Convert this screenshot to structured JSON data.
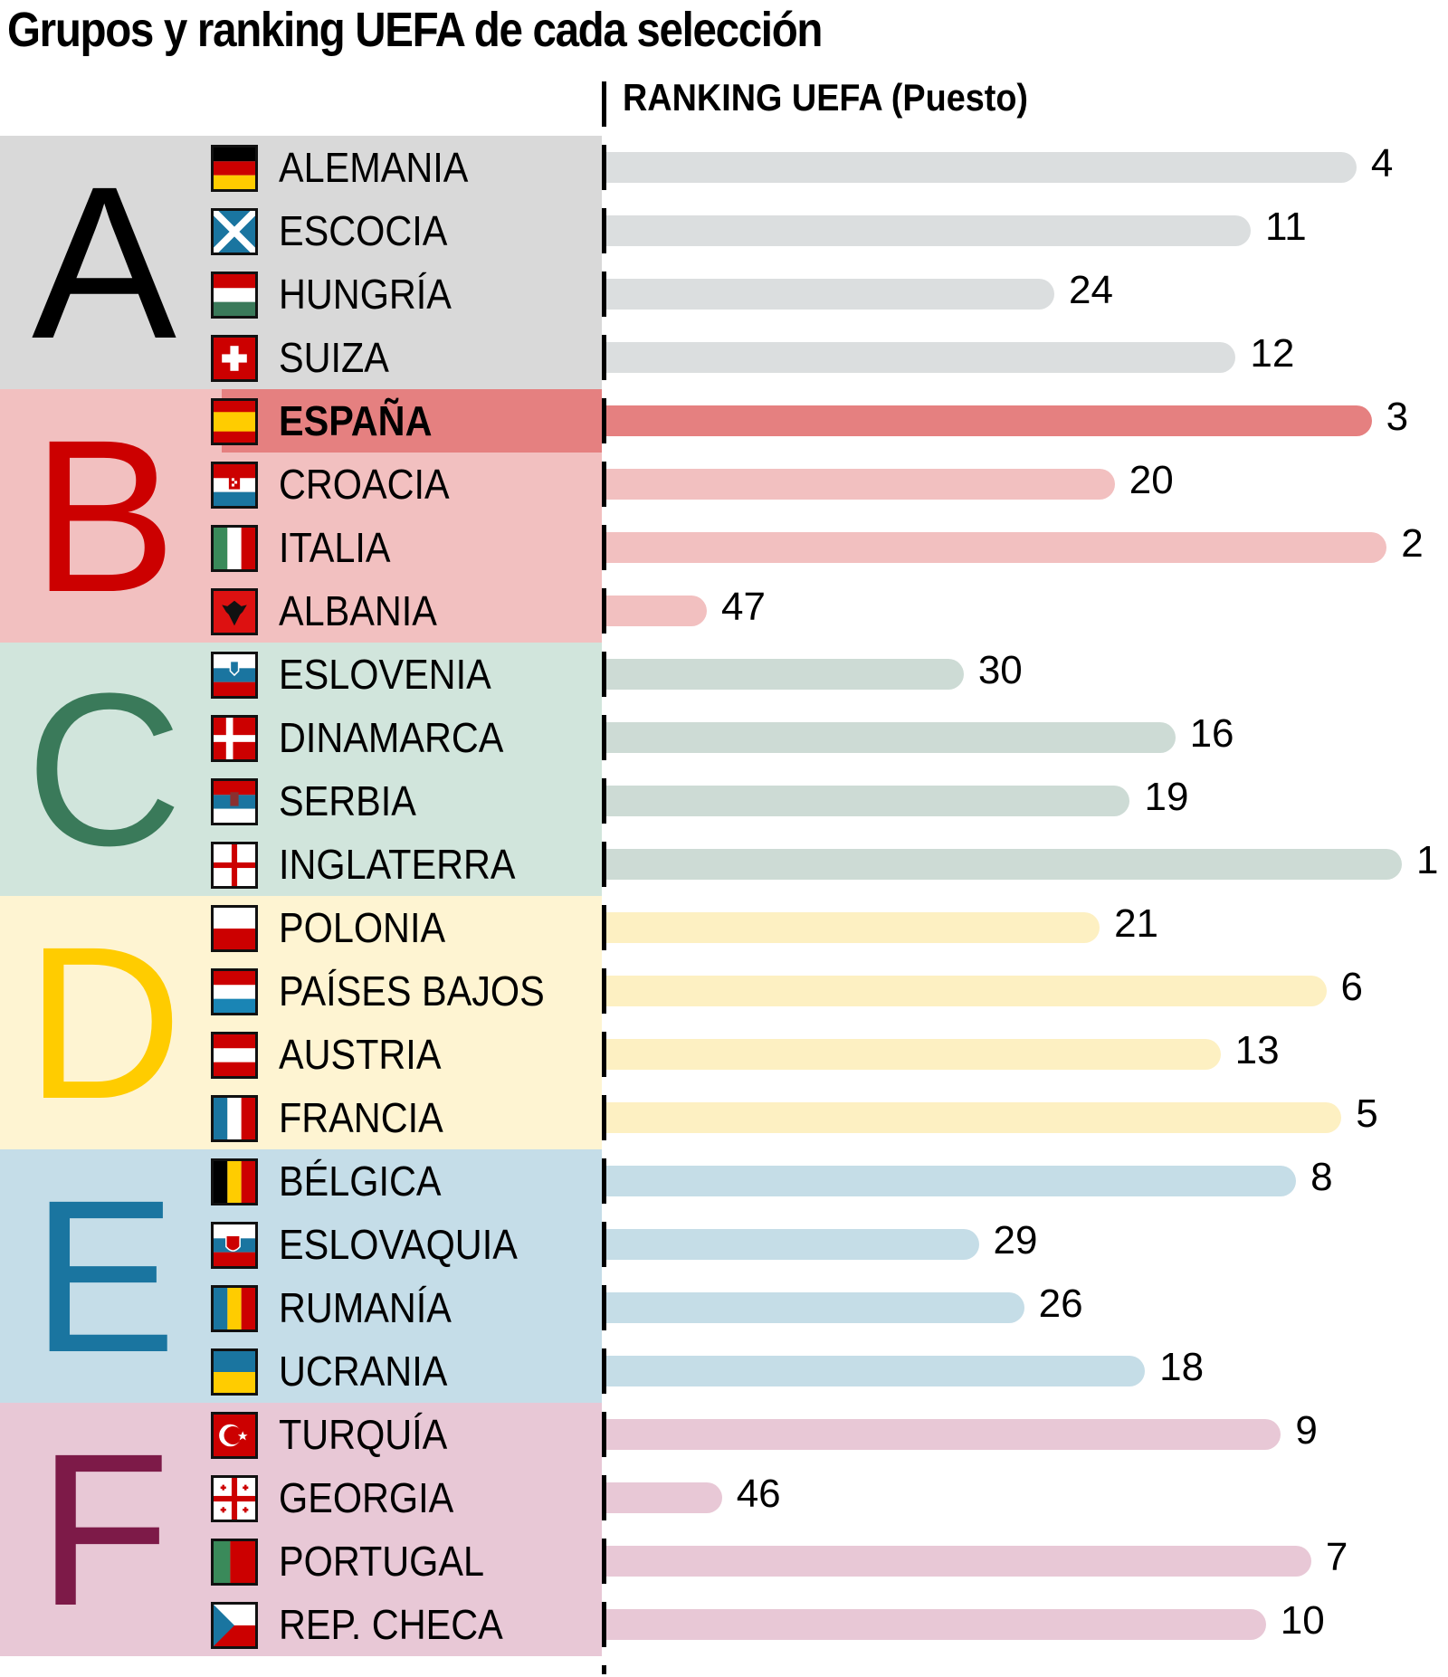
{
  "title": "Grupos y ranking UEFA de cada selección",
  "axis_title": "RANKING UEFA (Puesto)",
  "groups": [
    {
      "letter": "A",
      "letter_color": "#000000",
      "bg": "#d9d9d9",
      "bar_color": "#dbdedf",
      "teams": [
        {
          "name": "ALEMANIA",
          "rank": "4",
          "flag": "germany-flag"
        },
        {
          "name": "ESCOCIA",
          "rank": "11",
          "flag": "scotland-flag"
        },
        {
          "name": "HUNGRÍA",
          "rank": "24",
          "flag": "hungary-flag"
        },
        {
          "name": "SUIZA",
          "rank": "12",
          "flag": "switzerland-flag"
        }
      ]
    },
    {
      "letter": "B",
      "letter_color": "#cc0000",
      "bg": "#f2c0c0",
      "bar_color": "#f2c0c0",
      "teams": [
        {
          "name": "ESPAÑA",
          "rank": "3",
          "flag": "spain-flag",
          "highlight": true,
          "bar_color": "#e58080"
        },
        {
          "name": "CROACIA",
          "rank": "20",
          "flag": "croatia-flag"
        },
        {
          "name": "ITALIA",
          "rank": "2",
          "flag": "italy-flag"
        },
        {
          "name": "ALBANIA",
          "rank": "47",
          "flag": "albania-flag"
        }
      ]
    },
    {
      "letter": "C",
      "letter_color": "#3a7a5a",
      "bg": "#d1e5dc",
      "bar_color": "#cddbd5",
      "teams": [
        {
          "name": "ESLOVENIA",
          "rank": "30",
          "flag": "slovenia-flag"
        },
        {
          "name": "DINAMARCA",
          "rank": "16",
          "flag": "denmark-flag"
        },
        {
          "name": "SERBIA",
          "rank": "19",
          "flag": "serbia-flag"
        },
        {
          "name": "INGLATERRA",
          "rank": "1",
          "flag": "england-flag"
        }
      ]
    },
    {
      "letter": "D",
      "letter_color": "#ffcc00",
      "bg": "#fef4d2",
      "bar_color": "#fdf0c2",
      "teams": [
        {
          "name": "POLONIA",
          "rank": "21",
          "flag": "poland-flag"
        },
        {
          "name": "PAÍSES BAJOS",
          "rank": "6",
          "flag": "netherlands-flag"
        },
        {
          "name": "AUSTRIA",
          "rank": "13",
          "flag": "austria-flag"
        },
        {
          "name": "FRANCIA",
          "rank": "5",
          "flag": "france-flag"
        }
      ]
    },
    {
      "letter": "E",
      "letter_color": "#1a75a0",
      "bg": "#c5dde8",
      "bar_color": "#c5dde7",
      "teams": [
        {
          "name": "BÉLGICA",
          "rank": "8",
          "flag": "belgium-flag"
        },
        {
          "name": "ESLOVAQUIA",
          "rank": "29",
          "flag": "slovakia-flag"
        },
        {
          "name": "RUMANÍA",
          "rank": "26",
          "flag": "romania-flag"
        },
        {
          "name": "UCRANIA",
          "rank": "18",
          "flag": "ukraine-flag"
        }
      ]
    },
    {
      "letter": "F",
      "letter_color": "#7d1a48",
      "bg": "#e8c8d6",
      "bar_color": "#e8c8d6",
      "teams": [
        {
          "name": "TURQUÍA",
          "rank": "9",
          "flag": "turkey-flag"
        },
        {
          "name": "GEORGIA",
          "rank": "46",
          "flag": "georgia-flag"
        },
        {
          "name": "PORTUGAL",
          "rank": "7",
          "flag": "portugal-flag"
        },
        {
          "name": "REP. CHECA",
          "rank": "10",
          "flag": "czech-flag"
        }
      ]
    }
  ],
  "chart_data": {
    "type": "bar",
    "orientation": "horizontal",
    "title": "Grupos y ranking UEFA de cada selección",
    "xlabel": "RANKING UEFA (Puesto)",
    "ylabel": "",
    "note": "Bar length inversely proportional to ranking position (1 = longest)",
    "categories": [
      "ALEMANIA",
      "ESCOCIA",
      "HUNGRÍA",
      "SUIZA",
      "ESPAÑA",
      "CROACIA",
      "ITALIA",
      "ALBANIA",
      "ESLOVENIA",
      "DINAMARCA",
      "SERBIA",
      "INGLATERRA",
      "POLONIA",
      "PAÍSES BAJOS",
      "AUSTRIA",
      "FRANCIA",
      "BÉLGICA",
      "ESLOVAQUIA",
      "RUMANÍA",
      "UCRANIA",
      "TURQUÍA",
      "GEORGIA",
      "PORTUGAL",
      "REP. CHECA"
    ],
    "groups": [
      "A",
      "A",
      "A",
      "A",
      "B",
      "B",
      "B",
      "B",
      "C",
      "C",
      "C",
      "C",
      "D",
      "D",
      "D",
      "D",
      "E",
      "E",
      "E",
      "E",
      "F",
      "F",
      "F",
      "F"
    ],
    "values": [
      4,
      11,
      24,
      12,
      3,
      20,
      2,
      47,
      30,
      16,
      19,
      1,
      21,
      6,
      13,
      5,
      8,
      29,
      26,
      18,
      9,
      46,
      7,
      10
    ],
    "grid": false,
    "legend": "none"
  }
}
